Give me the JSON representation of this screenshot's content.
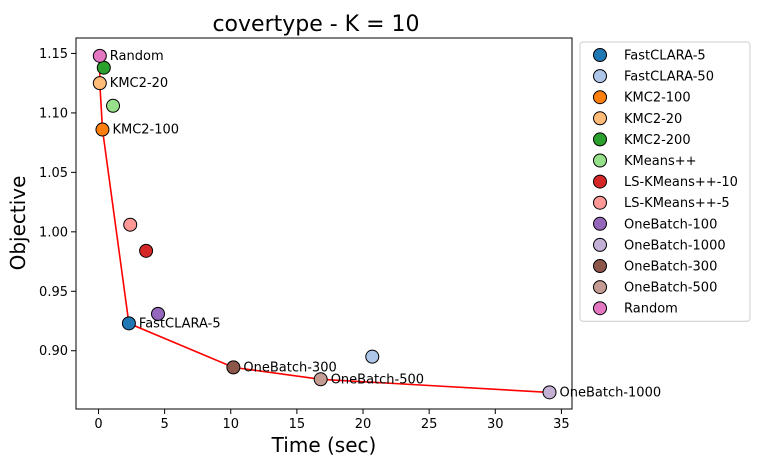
{
  "chart_data": {
    "type": "scatter",
    "title": "covertype - K = 10",
    "xlabel": "Time (sec)",
    "ylabel": "Objective",
    "xlim": [
      -1.7,
      35.8
    ],
    "ylim": [
      0.851,
      1.163
    ],
    "xticks": [
      "0",
      "5",
      "10",
      "15",
      "20",
      "25",
      "30",
      "35"
    ],
    "xtick_values": [
      0,
      5,
      10,
      15,
      20,
      25,
      30,
      35
    ],
    "yticks": [
      "0.90",
      "0.95",
      "1.00",
      "1.05",
      "1.10",
      "1.15"
    ],
    "ytick_values": [
      0.9,
      0.95,
      1.0,
      1.05,
      1.1,
      1.15
    ],
    "legend_position": "outside-right",
    "grid": false,
    "frontier_color": "#ff0000",
    "frontier": [
      {
        "x": 0.1,
        "y": 1.148
      },
      {
        "x": 0.1,
        "y": 1.125
      },
      {
        "x": 0.3,
        "y": 1.086
      },
      {
        "x": 2.3,
        "y": 0.923
      },
      {
        "x": 10.2,
        "y": 0.886
      },
      {
        "x": 16.8,
        "y": 0.876
      },
      {
        "x": 34.1,
        "y": 0.865
      }
    ],
    "series": [
      {
        "name": "FastCLARA-5",
        "color": "#1f77b4",
        "x": 2.3,
        "y": 0.923,
        "label": "FastCLARA-5"
      },
      {
        "name": "FastCLARA-50",
        "color": "#aec7e8",
        "x": 20.7,
        "y": 0.895,
        "label": ""
      },
      {
        "name": "KMC2-100",
        "color": "#ff7f0e",
        "x": 0.3,
        "y": 1.086,
        "label": "KMC2-100"
      },
      {
        "name": "KMC2-20",
        "color": "#ffbb78",
        "x": 0.1,
        "y": 1.125,
        "label": "KMC2-20"
      },
      {
        "name": "KMC2-200",
        "color": "#2ca02c",
        "x": 0.4,
        "y": 1.138,
        "label": ""
      },
      {
        "name": "KMeans++",
        "color": "#98df8a",
        "x": 1.1,
        "y": 1.106,
        "label": ""
      },
      {
        "name": "LS-KMeans++-10",
        "color": "#d62728",
        "x": 3.6,
        "y": 0.984,
        "label": ""
      },
      {
        "name": "LS-KMeans++-5",
        "color": "#ff9896",
        "x": 2.4,
        "y": 1.006,
        "label": ""
      },
      {
        "name": "OneBatch-100",
        "color": "#9467bd",
        "x": 4.5,
        "y": 0.931,
        "label": ""
      },
      {
        "name": "OneBatch-1000",
        "color": "#c5b0d5",
        "x": 34.1,
        "y": 0.865,
        "label": "OneBatch-1000"
      },
      {
        "name": "OneBatch-300",
        "color": "#8c564b",
        "x": 10.2,
        "y": 0.886,
        "label": "OneBatch-300"
      },
      {
        "name": "OneBatch-500",
        "color": "#c49c94",
        "x": 16.8,
        "y": 0.876,
        "label": "OneBatch-500"
      },
      {
        "name": "Random",
        "color": "#e377c2",
        "x": 0.1,
        "y": 1.148,
        "label": "Random"
      }
    ]
  }
}
